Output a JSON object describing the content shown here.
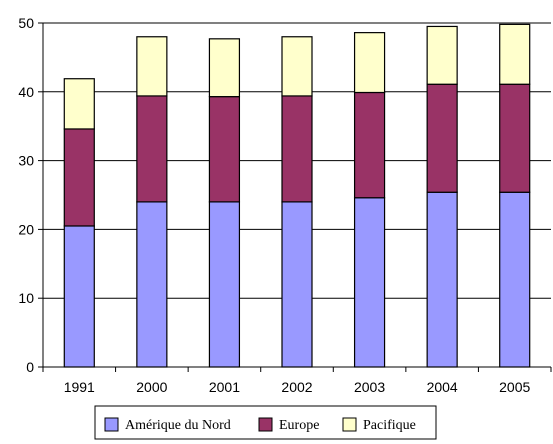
{
  "chart_data": {
    "type": "bar",
    "stacked": true,
    "categories": [
      "1991",
      "2000",
      "2001",
      "2002",
      "2003",
      "2004",
      "2005"
    ],
    "series": [
      {
        "name": "Amérique du Nord",
        "values": [
          20.5,
          24.0,
          24.0,
          24.0,
          24.6,
          25.4,
          25.4
        ],
        "color": "#9999ff"
      },
      {
        "name": "Europe",
        "values": [
          14.1,
          15.4,
          15.3,
          15.4,
          15.3,
          15.7,
          15.7
        ],
        "color": "#993366"
      },
      {
        "name": "Pacifique",
        "values": [
          7.3,
          8.6,
          8.4,
          8.6,
          8.7,
          8.4,
          8.7
        ],
        "color": "#ffffcc"
      }
    ],
    "yticks": [
      "0",
      "10",
      "20",
      "30",
      "40",
      "50"
    ],
    "ylim": [
      0,
      50
    ],
    "grid": true,
    "legend_position": "bottom"
  }
}
